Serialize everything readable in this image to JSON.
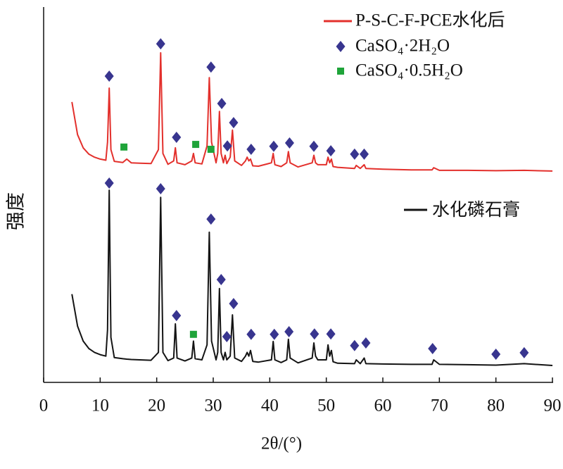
{
  "chart_data": {
    "type": "line",
    "xlabel": "2θ/(°)",
    "ylabel": "强度",
    "xlim": [
      0,
      90
    ],
    "xticks": [
      0,
      10,
      20,
      30,
      40,
      50,
      60,
      70,
      80,
      90
    ],
    "ylim": [
      0,
      100
    ],
    "yticks": [],
    "x": [
      5,
      6,
      7,
      8,
      9,
      10,
      11,
      11.3,
      11.6,
      11.9,
      12.5,
      14,
      14.7,
      15.5,
      17,
      19,
      20.3,
      20.7,
      21.1,
      22,
      23,
      23.3,
      23.6,
      25,
      26.2,
      26.5,
      26.8,
      28,
      28.9,
      29.3,
      29.7,
      30.5,
      30.8,
      31.1,
      31.4,
      31.8,
      32.1,
      32.4,
      33,
      33.4,
      33.8,
      35,
      35.7,
      36,
      36.3,
      36.6,
      37,
      38,
      40.3,
      40.6,
      40.9,
      42,
      43,
      43.3,
      43.6,
      45,
      47.5,
      47.8,
      48.1,
      48.5,
      50,
      50.3,
      50.6,
      50.9,
      51.2,
      52,
      55,
      55.3,
      56,
      56.7,
      57,
      60,
      65,
      68.7,
      69,
      70,
      75,
      80,
      85,
      90
    ],
    "series": [
      {
        "name": "P-S-C-F-PCE水化后",
        "color": "#e3302c",
        "values": [
          74.7,
          66,
          62.5,
          60.8,
          60,
          59.5,
          59.2,
          64,
          78.4,
          62,
          58.9,
          58.6,
          59.5,
          58.5,
          58.4,
          58.3,
          62,
          87.8,
          61,
          58.1,
          59,
          62.5,
          58.5,
          58,
          59,
          61,
          58.5,
          58.2,
          63,
          81.2,
          64,
          58.5,
          61,
          72.2,
          61,
          58.5,
          60.5,
          58.3,
          60,
          67.2,
          59,
          57.8,
          59,
          60,
          59,
          59.5,
          57.7,
          57.6,
          58.5,
          61,
          58,
          57.5,
          58.5,
          61.5,
          58.5,
          57.4,
          58.5,
          60.5,
          58.5,
          58,
          58,
          60,
          58.5,
          59.5,
          57.5,
          57.3,
          57,
          57.8,
          57,
          58,
          57,
          56.8,
          56.6,
          56.6,
          57.2,
          56.5,
          56.5,
          56.4,
          56.5,
          56.3
        ]
      },
      {
        "name": "水化磷石膏",
        "color": "#141414",
        "values": [
          23.5,
          15,
          11,
          9,
          8,
          7.4,
          7,
          14,
          51.2,
          12,
          6.6,
          6.3,
          6.2,
          6.1,
          6,
          5.9,
          8,
          49.3,
          8,
          5.8,
          6.5,
          15.6,
          6.5,
          5.7,
          6.5,
          11,
          6.3,
          6,
          10,
          40,
          11,
          6,
          8,
          25,
          8,
          6,
          8,
          6,
          7,
          18,
          6.5,
          5.6,
          7,
          8,
          7,
          8.5,
          5.6,
          5.4,
          6,
          10.9,
          6,
          5.3,
          6,
          11.5,
          6.5,
          5.2,
          6.5,
          10.5,
          7,
          6,
          6,
          10,
          7,
          8.5,
          5.5,
          5.1,
          5,
          6,
          5,
          6.5,
          5,
          4.9,
          4.8,
          4.8,
          6,
          4.8,
          4.7,
          4.6,
          5,
          4.5
        ]
      }
    ],
    "markers": [
      {
        "name": "CaSO₄·2H₂O",
        "shape": "diamond",
        "color": "#38358f",
        "x": [
          11.6,
          20.7,
          29.6,
          31.5,
          33.6,
          23.5,
          32.5,
          36.7,
          40.7,
          43.5,
          47.8,
          50.8,
          55,
          56.7,
          11.6,
          20.7,
          29.6,
          31.4,
          33.6,
          23.5,
          32.4,
          36.7,
          40.8,
          43.4,
          47.9,
          50.8,
          55,
          57,
          68.8,
          80,
          85
        ],
        "y": [
          81.6,
          90.2,
          84,
          74.3,
          69.2,
          65.3,
          63,
          62.1,
          62.9,
          63.8,
          62.9,
          61.7,
          60.8,
          60.8,
          53.1,
          51.6,
          43.5,
          27.4,
          21,
          17.8,
          12.2,
          12.8,
          12.8,
          13.5,
          12.9,
          12.9,
          9.8,
          10.5,
          9,
          7.5,
          7.9
        ]
      },
      {
        "name": "CaSO₄·0.5H₂O",
        "shape": "square",
        "color": "#1fa43a",
        "x": [
          14.2,
          26.9,
          29.6,
          26.5
        ],
        "y": [
          62.7,
          63.4,
          62.1,
          12.8
        ]
      }
    ]
  }
}
